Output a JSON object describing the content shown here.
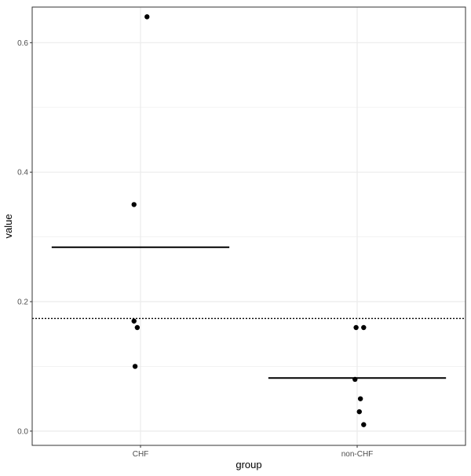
{
  "chart_data": {
    "type": "scatter",
    "xlabel": "group",
    "ylabel": "value",
    "categories": [
      "CHF",
      "non-CHF"
    ],
    "ylim": [
      -0.022,
      0.655
    ],
    "y_ticks": [
      0.0,
      0.2,
      0.4,
      0.6
    ],
    "y_tick_labels": [
      "0.0",
      "0.2",
      "0.4",
      "0.6"
    ],
    "grid": true,
    "points": [
      {
        "group": "CHF",
        "jitter": 0.03,
        "value": 0.64
      },
      {
        "group": "CHF",
        "jitter": -0.03,
        "value": 0.35
      },
      {
        "group": "CHF",
        "jitter": -0.03,
        "value": 0.17
      },
      {
        "group": "CHF",
        "jitter": -0.015,
        "value": 0.16
      },
      {
        "group": "CHF",
        "jitter": -0.025,
        "value": 0.1
      },
      {
        "group": "non-CHF",
        "jitter": -0.005,
        "value": 0.16
      },
      {
        "group": "non-CHF",
        "jitter": 0.03,
        "value": 0.16
      },
      {
        "group": "non-CHF",
        "jitter": -0.01,
        "value": 0.08
      },
      {
        "group": "non-CHF",
        "jitter": 0.015,
        "value": 0.05
      },
      {
        "group": "non-CHF",
        "jitter": 0.01,
        "value": 0.03
      },
      {
        "group": "non-CHF",
        "jitter": 0.03,
        "value": 0.01
      }
    ],
    "group_means": [
      {
        "group": "CHF",
        "value": 0.284
      },
      {
        "group": "non-CHF",
        "value": 0.082
      }
    ],
    "reference_line": {
      "value": 0.174,
      "style": "dotted"
    },
    "colors": {
      "points": "#000000",
      "lines": "#000000",
      "grid": "#ebebeb",
      "border": "#333333"
    }
  }
}
